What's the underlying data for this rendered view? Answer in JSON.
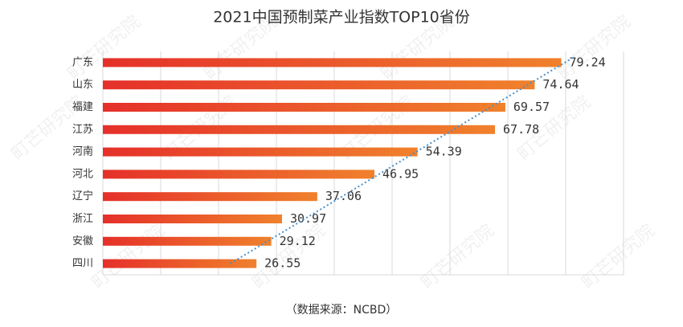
{
  "chart_data": {
    "type": "bar",
    "orientation": "horizontal",
    "title": "2021中国预制菜产业指数TOP10省份",
    "source": "（数据来源：NCBD）",
    "watermark": "町芒研究院",
    "categories": [
      "广东",
      "山东",
      "福建",
      "江苏",
      "河南",
      "河北",
      "辽宁",
      "浙江",
      "安徽",
      "四川"
    ],
    "values": [
      79.24,
      74.64,
      69.57,
      67.78,
      54.39,
      46.95,
      37.06,
      30.97,
      29.12,
      26.55
    ],
    "color_start": "#e5302a",
    "color_end": "#f0812c",
    "trendline": true,
    "trendline_color": "#4a90c8",
    "xlim": [
      0,
      90
    ],
    "xticks": [
      0,
      10,
      20,
      30,
      40,
      50,
      60,
      70,
      80,
      90
    ],
    "grid": true
  }
}
